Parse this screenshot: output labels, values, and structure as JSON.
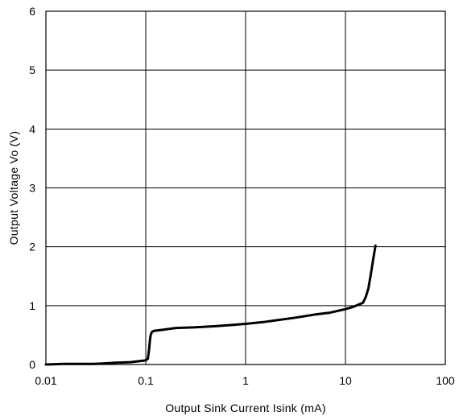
{
  "chart_data": {
    "type": "line",
    "title": "",
    "xlabel": "Output Sink Current  Isink  (mA)",
    "ylabel": "Output Voltage  Vo  (V)",
    "xscale": "log",
    "xlim": [
      0.01,
      100
    ],
    "ylim": [
      0,
      6
    ],
    "grid": true,
    "legend": "none",
    "x_ticks": [
      0.01,
      0.1,
      1,
      10,
      100
    ],
    "x_tick_labels": [
      "0.01",
      "0.1",
      "1",
      "10",
      "100"
    ],
    "y_ticks": [
      0,
      1,
      2,
      3,
      4,
      5,
      6
    ],
    "y_tick_labels": [
      "0",
      "1",
      "2",
      "3",
      "4",
      "5",
      "6"
    ],
    "line_color": "#000000",
    "series": [
      {
        "x": [
          0.01,
          0.015,
          0.02,
          0.03,
          0.04,
          0.05,
          0.07,
          0.1,
          0.105,
          0.108,
          0.11,
          0.112,
          0.115,
          0.12,
          0.15,
          0.2,
          0.3,
          0.5,
          0.7,
          1,
          1.5,
          2,
          3,
          5,
          7,
          10,
          12,
          15,
          16,
          17,
          18,
          19,
          20
        ],
        "y": [
          0.0,
          0.01,
          0.01,
          0.01,
          0.02,
          0.03,
          0.04,
          0.07,
          0.1,
          0.25,
          0.4,
          0.5,
          0.55,
          0.57,
          0.59,
          0.62,
          0.63,
          0.65,
          0.67,
          0.69,
          0.72,
          0.75,
          0.79,
          0.85,
          0.88,
          0.94,
          0.98,
          1.05,
          1.15,
          1.3,
          1.55,
          1.8,
          2.02
        ]
      }
    ]
  }
}
